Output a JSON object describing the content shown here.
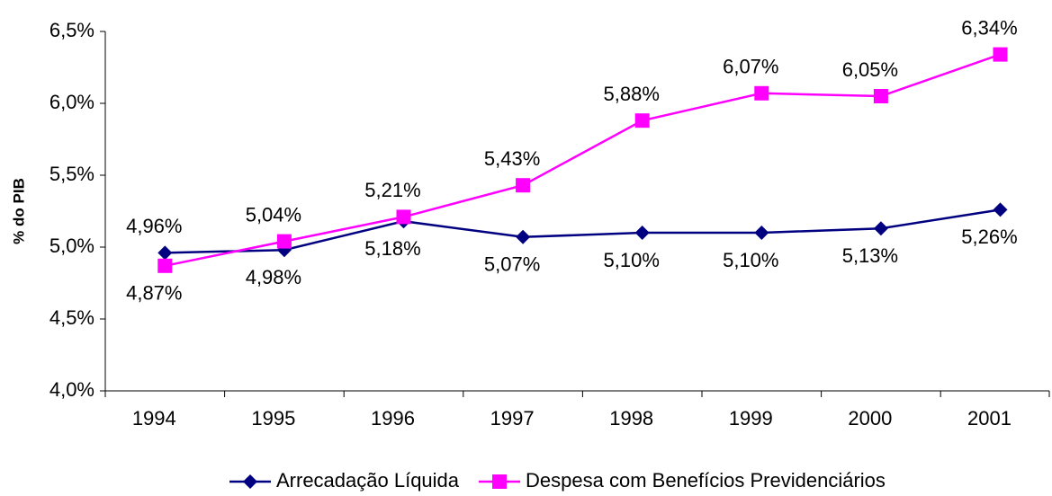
{
  "chart_data": {
    "type": "line",
    "y_label": "% do PIB",
    "categories": [
      "1994",
      "1995",
      "1996",
      "1997",
      "1998",
      "1999",
      "2000",
      "2001"
    ],
    "series": [
      {
        "name": "Arrecadação Líquida",
        "color": "#000080",
        "marker": "diamond",
        "values": [
          4.96,
          4.98,
          5.18,
          5.07,
          5.1,
          5.1,
          5.13,
          5.26
        ],
        "value_labels": [
          "4,96%",
          "4,98%",
          "5,18%",
          "5,07%",
          "5,10%",
          "5,10%",
          "5,13%",
          "5,26%"
        ]
      },
      {
        "name": "Despesa com Benefícios Previdenciários",
        "color": "#ff00ff",
        "marker": "square",
        "values": [
          4.87,
          5.04,
          5.21,
          5.43,
          5.88,
          6.07,
          6.05,
          6.34
        ],
        "value_labels": [
          "4,87%",
          "5,04%",
          "5,21%",
          "5,43%",
          "5,88%",
          "6,07%",
          "6,05%",
          "6,34%"
        ]
      }
    ],
    "ylim": [
      4.0,
      6.5
    ],
    "yticks": [
      {
        "value": 4.0,
        "label": "4,0%"
      },
      {
        "value": 4.5,
        "label": "4,5%"
      },
      {
        "value": 5.0,
        "label": "5,0%"
      },
      {
        "value": 5.5,
        "label": "5,5%"
      },
      {
        "value": 6.0,
        "label": "6,0%"
      },
      {
        "value": 6.5,
        "label": "6,5%"
      }
    ],
    "grid": false,
    "legend": "bottom"
  }
}
